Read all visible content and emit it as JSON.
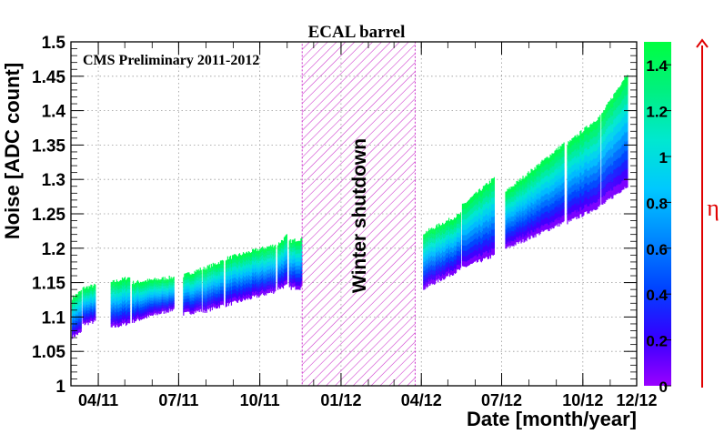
{
  "chart_data": {
    "type": "scatter",
    "title": "ECAL barrel",
    "annotation": "CMS Preliminary 2011-2012",
    "shutdown_label": "Winter shutdown",
    "xlabel": "Date [month/year]",
    "ylabel": "Noise [ADC count]",
    "ylim": [
      1.0,
      1.5
    ],
    "xlim": [
      "2011-03-01",
      "2012-12-01"
    ],
    "x_tick_labels": [
      "04/11",
      "07/11",
      "10/11",
      "01/12",
      "04/12",
      "07/12",
      "10/12",
      "12/12"
    ],
    "x_ticks": [
      "2011-04-01",
      "2011-07-01",
      "2011-10-01",
      "2012-01-01",
      "2012-04-01",
      "2012-07-01",
      "2012-10-01",
      "2012-12-01"
    ],
    "y_ticks": [
      1,
      1.05,
      1.1,
      1.15,
      1.2,
      1.25,
      1.3,
      1.35,
      1.4,
      1.45,
      1.5
    ],
    "y_tick_labels": [
      "1",
      "1.05",
      "1.1",
      "1.15",
      "1.2",
      "1.25",
      "1.3",
      "1.35",
      "1.4",
      "1.45",
      "1.5"
    ],
    "grid": true,
    "shutdown_period": [
      "2011-11-18",
      "2012-03-25"
    ],
    "colorbar": {
      "label": "η",
      "range": [
        0,
        1.5
      ],
      "tick_values": [
        0,
        0.2,
        0.4,
        0.6,
        0.8,
        1,
        1.2,
        1.4
      ],
      "tick_labels": [
        "0",
        "0.2",
        "0.4",
        "0.6",
        "0.8",
        "1",
        "1.2",
        "1.4"
      ],
      "colors": [
        "#9a00ff",
        "#3300ff",
        "#0044ff",
        "#0088ff",
        "#00c8ff",
        "#00e8d0",
        "#00f080",
        "#00ff40"
      ]
    },
    "accent_colors": {
      "arrow": "#e00000",
      "hatch": "#cc33cc",
      "grid": "#999999"
    },
    "series": [
      {
        "segments": [
          {
            "start": "2011-03-02",
            "end": "2011-03-12",
            "low": [
              1.072,
              1.078
            ],
            "high": [
              1.128,
              1.138
            ]
          },
          {
            "start": "2011-03-14",
            "end": "2011-03-28",
            "low": [
              1.09,
              1.094
            ],
            "high": [
              1.142,
              1.146
            ]
          },
          {
            "start": "2011-04-15",
            "end": "2011-05-06",
            "low": [
              1.085,
              1.092
            ],
            "high": [
              1.15,
              1.158
            ]
          },
          {
            "start": "2011-05-09",
            "end": "2011-06-25",
            "low": [
              1.094,
              1.112
            ],
            "high": [
              1.15,
              1.158
            ]
          },
          {
            "start": "2011-07-06",
            "end": "2011-07-26",
            "low": [
              1.105,
              1.11
            ],
            "high": [
              1.16,
              1.17
            ]
          },
          {
            "start": "2011-07-28",
            "end": "2011-08-20",
            "low": [
              1.108,
              1.118
            ],
            "high": [
              1.17,
              1.182
            ]
          },
          {
            "start": "2011-08-23",
            "end": "2011-10-18",
            "low": [
              1.118,
              1.138
            ],
            "high": [
              1.185,
              1.205
            ]
          },
          {
            "start": "2011-10-21",
            "end": "2011-10-31",
            "low": [
              1.142,
              1.146
            ],
            "high": [
              1.206,
              1.218
            ]
          },
          {
            "start": "2011-11-03",
            "end": "2011-11-17",
            "low": [
              1.143,
              1.143
            ],
            "high": [
              1.21,
              1.214
            ]
          },
          {
            "start": "2012-04-03",
            "end": "2012-05-15",
            "low": [
              1.142,
              1.17
            ],
            "high": [
              1.222,
              1.25
            ]
          },
          {
            "start": "2012-05-17",
            "end": "2012-06-22",
            "low": [
              1.172,
              1.19
            ],
            "high": [
              1.262,
              1.302
            ]
          },
          {
            "start": "2012-07-05",
            "end": "2012-09-09",
            "low": [
              1.2,
              1.238
            ],
            "high": [
              1.282,
              1.352
            ]
          },
          {
            "start": "2012-09-13",
            "end": "2012-10-20",
            "low": [
              1.238,
              1.262
            ],
            "high": [
              1.352,
              1.392
            ]
          },
          {
            "start": "2012-10-22",
            "end": "2012-11-20",
            "low": [
              1.263,
              1.292
            ],
            "high": [
              1.395,
              1.455
            ]
          }
        ]
      }
    ]
  }
}
